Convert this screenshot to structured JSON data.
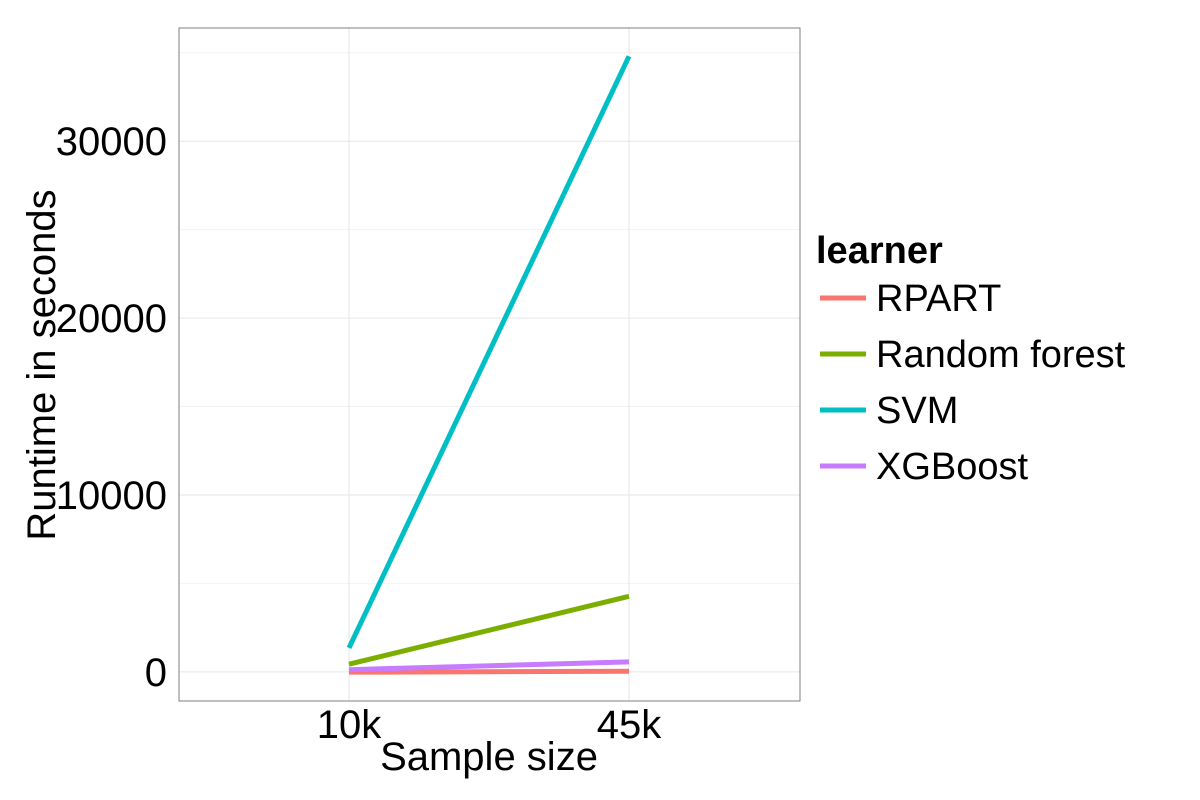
{
  "chart_data": {
    "type": "line",
    "xlabel": "Sample size",
    "ylabel": "Runtime in seconds",
    "categories": [
      "10k",
      "45k"
    ],
    "ylim": [
      -1650,
      36400
    ],
    "yticks": [
      0,
      10000,
      20000,
      30000
    ],
    "grid": true,
    "legend": {
      "title": "learner",
      "position": "right"
    },
    "series": [
      {
        "name": "RPART",
        "color": "#F8766D",
        "values": [
          -20,
          30
        ]
      },
      {
        "name": "Random forest",
        "color": "#7CAE00",
        "values": [
          430,
          4270
        ]
      },
      {
        "name": "SVM",
        "color": "#00BFC4",
        "values": [
          1350,
          34800
        ]
      },
      {
        "name": "XGBoost",
        "color": "#C77CFF",
        "values": [
          120,
          560
        ]
      }
    ]
  }
}
